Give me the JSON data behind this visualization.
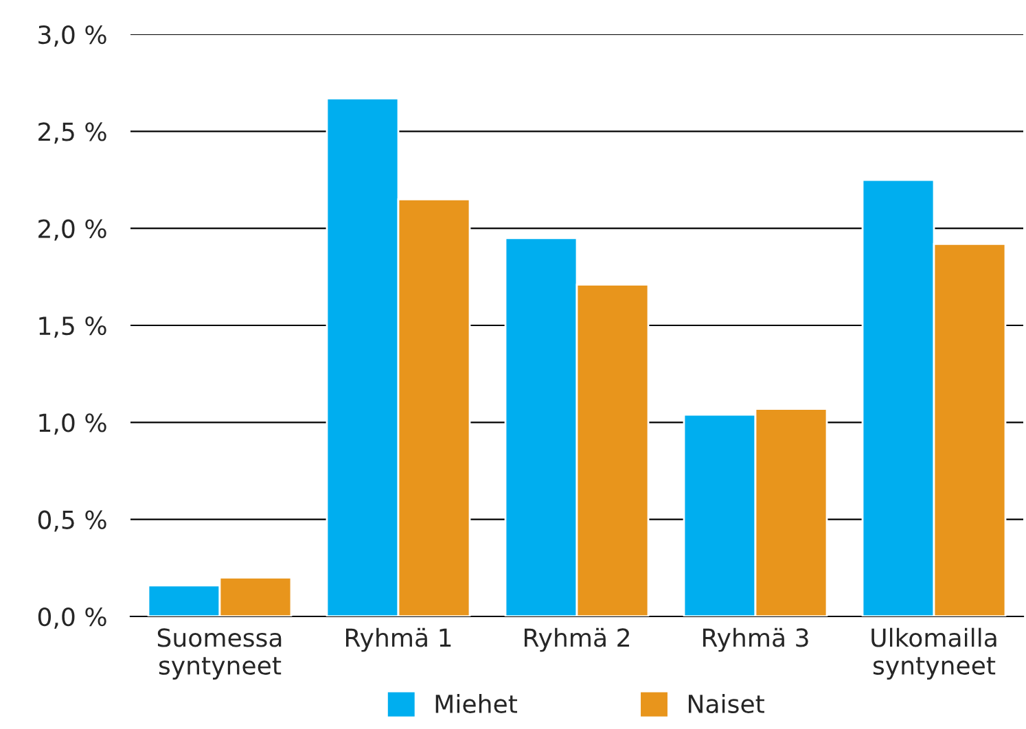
{
  "chart_data": {
    "type": "bar",
    "categories": [
      "Suomessa\nsyntyneet",
      "Ryhmä 1",
      "Ryhmä 2",
      "Ryhmä 3",
      "Ulkomailla\nsyntyneet"
    ],
    "series": [
      {
        "name": "Miehet",
        "color": "#00aeef",
        "values": [
          0.16,
          2.67,
          1.95,
          1.04,
          2.25
        ]
      },
      {
        "name": "Naiset",
        "color": "#e8951c",
        "values": [
          0.2,
          2.15,
          1.71,
          1.07,
          1.92
        ]
      }
    ],
    "ylim": [
      0,
      3.0
    ],
    "yticks": [
      {
        "value": 0,
        "label": "0,0 %"
      },
      {
        "value": 0.5,
        "label": "0,5 %"
      },
      {
        "value": 1.0,
        "label": "1,0 %"
      },
      {
        "value": 1.5,
        "label": "1,5 %"
      },
      {
        "value": 2.0,
        "label": "2,0 %"
      },
      {
        "value": 2.5,
        "label": "2,5 %"
      },
      {
        "value": 3.0,
        "label": "3,0 %"
      }
    ],
    "grid": "y",
    "legend": "bottom"
  }
}
